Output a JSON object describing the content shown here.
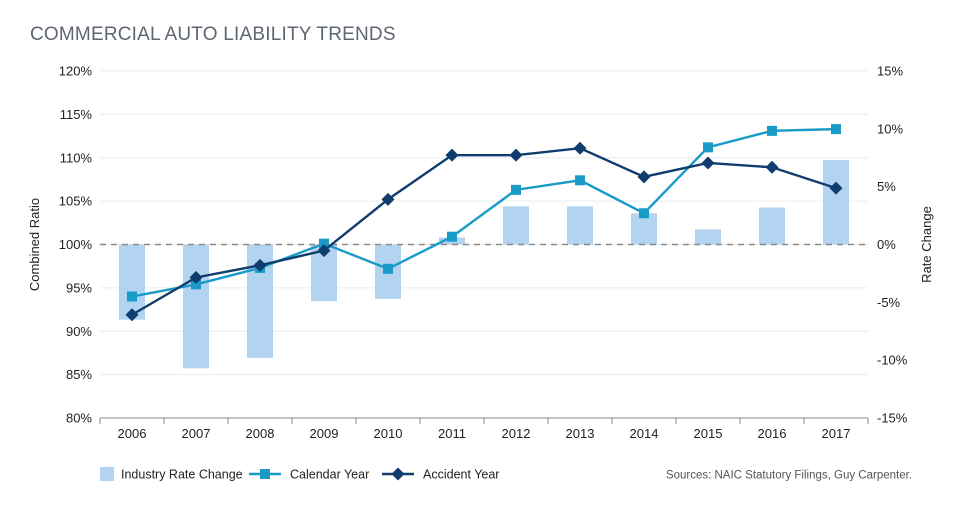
{
  "title": "COMMERCIAL AUTO LIABILITY TRENDS",
  "source": "Sources: NAIC Statutory Filings, Guy Carpenter.",
  "chart_data": {
    "type": "bar",
    "categories": [
      "2006",
      "2007",
      "2008",
      "2009",
      "2010",
      "2011",
      "2012",
      "2013",
      "2014",
      "2015",
      "2016",
      "2017"
    ],
    "ylabel": "Combined Ratio",
    "ylabel_right": "Rate Change",
    "ylim": [
      80,
      120
    ],
    "ylim_right": [
      -15,
      15
    ],
    "y_ticks": [
      "80%",
      "85%",
      "90%",
      "95%",
      "100%",
      "105%",
      "110%",
      "115%",
      "120%"
    ],
    "y_ticks_right": [
      "-15%",
      "-10%",
      "-5%",
      "0%",
      "5%",
      "10%",
      "15%"
    ],
    "reference_line": 100,
    "series": [
      {
        "name": "Industry Rate Change",
        "kind": "bar",
        "axis": "right",
        "color": "#b3d4f1",
        "values": [
          -6.5,
          -10.7,
          -9.8,
          -4.9,
          -4.7,
          0.6,
          3.3,
          3.3,
          2.7,
          1.3,
          3.2,
          7.3
        ]
      },
      {
        "name": "Calendar Year",
        "kind": "line",
        "marker": "square",
        "axis": "left",
        "color": "#1a9bc7",
        "values": [
          94.0,
          95.4,
          97.3,
          100.1,
          97.2,
          100.9,
          106.3,
          107.4,
          103.6,
          111.2,
          113.1,
          113.3
        ]
      },
      {
        "name": "Accident Year",
        "kind": "line",
        "marker": "diamond",
        "axis": "left",
        "color": "#0f3d6e",
        "values": [
          91.9,
          96.2,
          97.6,
          99.3,
          105.2,
          110.3,
          110.3,
          111.1,
          107.8,
          109.4,
          108.9,
          106.5
        ]
      }
    ]
  }
}
